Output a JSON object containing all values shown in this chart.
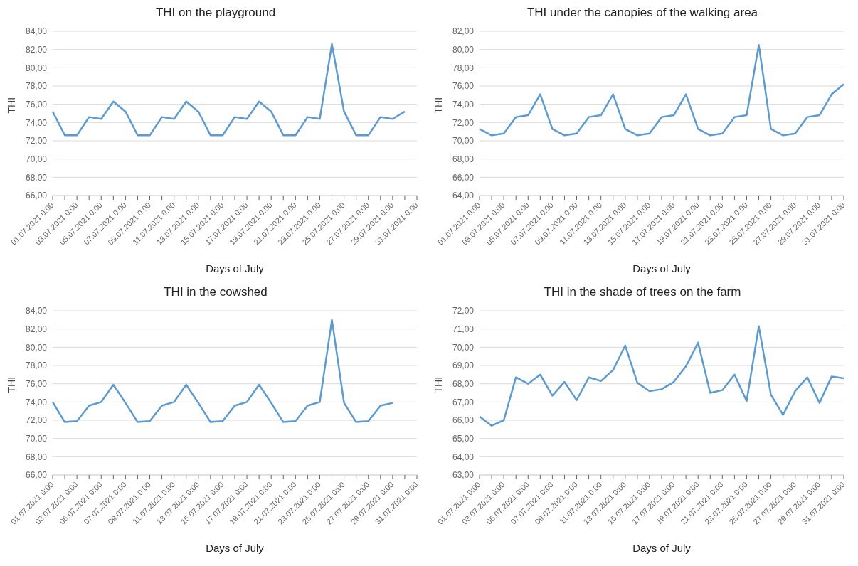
{
  "chart_data": [
    {
      "type": "line",
      "title": "THI on the playground",
      "xlabel": "Days of July",
      "ylabel": "THI",
      "categories": [
        "01.07.2021 0:00",
        null,
        "03.07.2021 0:00",
        null,
        "05.07.2021 0:00",
        null,
        "07.07.2021 0:00",
        null,
        "09.07.2021 0:00",
        null,
        "11.07.2021 0:00",
        null,
        "13.07.2021 0:00",
        null,
        "15.07.2021 0:00",
        null,
        "17.07.2021 0:00",
        null,
        "19.07.2021 0:00",
        null,
        "21.07.2021 0:00",
        null,
        "23.07.2021 0:00",
        null,
        "25.07.2021 0:00",
        null,
        "27.07.2021 0:00",
        null,
        "29.07.2021 0:00",
        null,
        "31.07.2021 0:00"
      ],
      "series": [
        {
          "color": "#5b9bd5",
          "values": [
            75.2,
            72.6,
            72.6,
            74.6,
            74.4,
            76.3,
            75.2,
            72.6,
            72.6,
            74.6,
            74.4,
            76.3,
            75.2,
            72.6,
            72.6,
            74.6,
            74.4,
            76.3,
            75.2,
            72.6,
            72.6,
            74.6,
            74.4,
            82.6,
            75.2,
            72.6,
            72.6,
            74.6,
            74.4,
            75.2,
            null
          ]
        }
      ],
      "ylim": [
        66,
        84
      ],
      "yticks": [
        {
          "value": 66,
          "label": "66,00"
        },
        {
          "value": 68,
          "label": "68,00"
        },
        {
          "value": 70,
          "label": "70,00"
        },
        {
          "value": 72,
          "label": "72,00"
        },
        {
          "value": 74,
          "label": "74,00"
        },
        {
          "value": 76,
          "label": "76,00"
        },
        {
          "value": 78,
          "label": "78,00"
        },
        {
          "value": 80,
          "label": "80,00"
        },
        {
          "value": 82,
          "label": "82,00"
        },
        {
          "value": 84,
          "label": "84,00"
        }
      ],
      "grid": "y",
      "legend": false,
      "marker": "none",
      "line_style": "solid"
    },
    {
      "type": "line",
      "title": "THI under the canopies of the walking area",
      "xlabel": "Days of July",
      "ylabel": "THI",
      "categories": [
        "01.07.2021 0:00",
        null,
        "03.07.2021 0:00",
        null,
        "05.07.2021 0:00",
        null,
        "07.07.2021 0:00",
        null,
        "09.07.2021 0:00",
        null,
        "11.07.2021 0:00",
        null,
        "13.07.2021 0:00",
        null,
        "15.07.2021 0:00",
        null,
        "17.07.2021 0:00",
        null,
        "19.07.2021 0:00",
        null,
        "21.07.2021 0:00",
        null,
        "23.07.2021 0:00",
        null,
        "25.07.2021 0:00",
        null,
        "27.07.2021 0:00",
        null,
        "29.07.2021 0:00",
        null,
        "31.07.2021 0:00"
      ],
      "series": [
        {
          "color": "#5b9bd5",
          "values": [
            71.3,
            70.6,
            70.8,
            72.6,
            72.8,
            75.1,
            71.3,
            70.6,
            70.8,
            72.6,
            72.8,
            75.1,
            71.3,
            70.6,
            70.8,
            72.6,
            72.8,
            75.1,
            71.3,
            70.6,
            70.8,
            72.6,
            72.8,
            80.5,
            71.3,
            70.6,
            70.8,
            72.6,
            72.8,
            75.1,
            76.2
          ]
        }
      ],
      "ylim": [
        64,
        82
      ],
      "yticks": [
        {
          "value": 64,
          "label": "64,00"
        },
        {
          "value": 66,
          "label": "66,00"
        },
        {
          "value": 68,
          "label": "68,00"
        },
        {
          "value": 70,
          "label": "70,00"
        },
        {
          "value": 72,
          "label": "72,00"
        },
        {
          "value": 74,
          "label": "74,00"
        },
        {
          "value": 76,
          "label": "76,00"
        },
        {
          "value": 78,
          "label": "78,00"
        },
        {
          "value": 80,
          "label": "80,00"
        },
        {
          "value": 82,
          "label": "82,00"
        }
      ],
      "grid": "y",
      "legend": false,
      "marker": "none",
      "line_style": "solid"
    },
    {
      "type": "line",
      "title": "THI in the cowshed",
      "xlabel": "Days of July",
      "ylabel": "THI",
      "categories": [
        "01.07.2021 0:00",
        null,
        "03.07.2021 0:00",
        null,
        "05.07.2021 0:00",
        null,
        "07.07.2021 0:00",
        null,
        "09.07.2021 0:00",
        null,
        "11.07.2021 0:00",
        null,
        "13.07.2021 0:00",
        null,
        "15.07.2021 0:00",
        null,
        "17.07.2021 0:00",
        null,
        "19.07.2021 0:00",
        null,
        "21.07.2021 0:00",
        null,
        "23.07.2021 0:00",
        null,
        "25.07.2021 0:00",
        null,
        "27.07.2021 0:00",
        null,
        "29.07.2021 0:00",
        null,
        "31.07.2021 0:00"
      ],
      "series": [
        {
          "color": "#5b9bd5",
          "values": [
            74.0,
            71.8,
            71.9,
            73.6,
            74.0,
            75.9,
            73.9,
            71.8,
            71.9,
            73.6,
            74.0,
            75.9,
            73.9,
            71.8,
            71.9,
            73.6,
            74.0,
            75.9,
            73.9,
            71.8,
            71.9,
            73.6,
            74.0,
            83.0,
            73.9,
            71.8,
            71.9,
            73.6,
            73.9,
            null,
            null
          ]
        }
      ],
      "ylim": [
        66,
        84
      ],
      "yticks": [
        {
          "value": 66,
          "label": "66,00"
        },
        {
          "value": 68,
          "label": "68,00"
        },
        {
          "value": 70,
          "label": "70,00"
        },
        {
          "value": 72,
          "label": "72,00"
        },
        {
          "value": 74,
          "label": "74,00"
        },
        {
          "value": 76,
          "label": "76,00"
        },
        {
          "value": 78,
          "label": "78,00"
        },
        {
          "value": 80,
          "label": "80,00"
        },
        {
          "value": 82,
          "label": "82,00"
        },
        {
          "value": 84,
          "label": "84,00"
        }
      ],
      "grid": "y",
      "legend": false,
      "marker": "none",
      "line_style": "solid"
    },
    {
      "type": "line",
      "title": "THI in the shade of trees on the farm",
      "xlabel": "Days of July",
      "ylabel": "THI",
      "categories": [
        "01.07.2021 0:00",
        null,
        "03.07.2021 0:00",
        null,
        "05.07.2021 0:00",
        null,
        "07.07.2021 0:00",
        null,
        "09.07.2021 0:00",
        null,
        "11.07.2021 0:00",
        null,
        "13.07.2021 0:00",
        null,
        "15.07.2021 0:00",
        null,
        "17.07.2021 0:00",
        null,
        "19.07.2021 0:00",
        null,
        "21.07.2021 0:00",
        null,
        "23.07.2021 0:00",
        null,
        "25.07.2021 0:00",
        null,
        "27.07.2021 0:00",
        null,
        "29.07.2021 0:00",
        null,
        "31.07.2021 0:00"
      ],
      "series": [
        {
          "color": "#5b9bd5",
          "values": [
            66.2,
            65.7,
            66.0,
            68.35,
            68.0,
            68.5,
            67.35,
            68.1,
            67.1,
            68.35,
            68.15,
            68.75,
            70.1,
            68.05,
            67.6,
            67.7,
            68.1,
            68.95,
            70.25,
            67.5,
            67.65,
            68.5,
            67.05,
            71.15,
            67.4,
            66.3,
            67.6,
            68.35,
            66.95,
            68.4,
            68.3
          ]
        }
      ],
      "ylim": [
        63,
        72
      ],
      "yticks": [
        {
          "value": 63,
          "label": "63,00"
        },
        {
          "value": 64,
          "label": "64,00"
        },
        {
          "value": 65,
          "label": "65,00"
        },
        {
          "value": 66,
          "label": "66,00"
        },
        {
          "value": 67,
          "label": "67,00"
        },
        {
          "value": 68,
          "label": "68,00"
        },
        {
          "value": 69,
          "label": "69,00"
        },
        {
          "value": 70,
          "label": "70,00"
        },
        {
          "value": 71,
          "label": "71,00"
        },
        {
          "value": 72,
          "label": "72,00"
        }
      ],
      "grid": "y",
      "legend": false,
      "marker": "none",
      "line_style": "solid"
    }
  ]
}
